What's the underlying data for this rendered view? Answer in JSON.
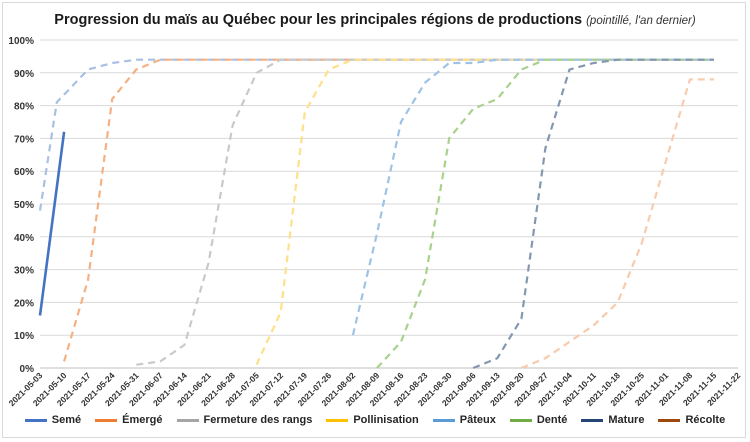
{
  "chart_data": {
    "type": "line",
    "title": "Progression du maïs au Québec pour les principales régions de productions",
    "subtitle": "(pointillé, l'an dernier)",
    "x_categories": [
      "2021-05-03",
      "2021-05-10",
      "2021-05-17",
      "2021-05-24",
      "2021-05-31",
      "2021-06-07",
      "2021-06-14",
      "2021-06-21",
      "2021-06-28",
      "2021-07-05",
      "2021-07-12",
      "2021-07-19",
      "2021-07-26",
      "2021-08-02",
      "2021-08-09",
      "2021-08-16",
      "2021-08-23",
      "2021-08-30",
      "2021-09-06",
      "2021-09-13",
      "2021-09-20",
      "2021-09-27",
      "2021-10-04",
      "2021-10-11",
      "2021-10-18",
      "2021-10-25",
      "2021-11-01",
      "2021-11-08",
      "2021-11-15",
      "2021-11-22"
    ],
    "y_ticks": [
      "0%",
      "10%",
      "20%",
      "30%",
      "40%",
      "50%",
      "60%",
      "70%",
      "80%",
      "90%",
      "100%"
    ],
    "ylim": [
      0,
      100
    ],
    "grid": true,
    "legend_position": "bottom",
    "series": [
      {
        "name": "Semé",
        "color": "#4472c4",
        "style": "solid",
        "points": [
          [
            0,
            16
          ],
          [
            1,
            72
          ]
        ]
      },
      {
        "name": "Émergé",
        "color": "#ed7d31",
        "style": "solid",
        "points": []
      },
      {
        "name": "Fermeture des rangs",
        "color": "#a5a5a5",
        "style": "solid",
        "points": []
      },
      {
        "name": "Pollinisation",
        "color": "#ffc000",
        "style": "solid",
        "points": []
      },
      {
        "name": "Pâteux",
        "color": "#5b9bd5",
        "style": "solid",
        "points": []
      },
      {
        "name": "Denté",
        "color": "#70ad47",
        "style": "solid",
        "points": []
      },
      {
        "name": "Mature",
        "color": "#264478",
        "style": "solid",
        "points": []
      },
      {
        "name": "Récolte",
        "color": "#9e480e",
        "style": "solid",
        "points": []
      },
      {
        "color": "#a9bfe3",
        "style": "dashed",
        "points": [
          [
            0,
            48
          ],
          [
            0.7,
            81
          ],
          [
            2,
            91
          ],
          [
            3,
            93
          ],
          [
            4,
            94
          ],
          [
            28,
            94
          ]
        ]
      },
      {
        "color": "#f4b183",
        "style": "dashed",
        "points": [
          [
            1,
            2
          ],
          [
            2,
            27
          ],
          [
            3,
            82
          ],
          [
            4,
            91
          ],
          [
            5,
            94
          ],
          [
            28,
            94
          ]
        ]
      },
      {
        "color": "#c9c9c9",
        "style": "dashed",
        "points": [
          [
            4,
            1
          ],
          [
            5,
            2
          ],
          [
            6,
            7
          ],
          [
            7,
            32
          ],
          [
            8,
            74
          ],
          [
            9,
            90
          ],
          [
            10,
            94
          ],
          [
            28,
            94
          ]
        ]
      },
      {
        "color": "#ffe08a",
        "style": "dashed",
        "points": [
          [
            9,
            1
          ],
          [
            10,
            17
          ],
          [
            11,
            78
          ],
          [
            12,
            91
          ],
          [
            13,
            94
          ],
          [
            28,
            94
          ]
        ]
      },
      {
        "color": "#9dc3e6",
        "style": "dashed",
        "points": [
          [
            13,
            10
          ],
          [
            14,
            41
          ],
          [
            15,
            75
          ],
          [
            16,
            87
          ],
          [
            17,
            93
          ],
          [
            18,
            93
          ],
          [
            19,
            94
          ],
          [
            28,
            94
          ]
        ]
      },
      {
        "color": "#a9d18e",
        "style": "dashed",
        "points": [
          [
            14,
            0
          ],
          [
            15,
            8
          ],
          [
            16,
            27
          ],
          [
            17,
            70
          ],
          [
            18,
            79
          ],
          [
            19,
            82
          ],
          [
            20,
            91
          ],
          [
            21,
            94
          ],
          [
            28,
            94
          ]
        ]
      },
      {
        "color": "#8497b0",
        "style": "dashed",
        "points": [
          [
            18,
            0
          ],
          [
            19,
            3
          ],
          [
            20,
            15
          ],
          [
            21,
            67
          ],
          [
            22,
            91
          ],
          [
            23,
            93
          ],
          [
            24,
            94
          ],
          [
            28,
            94
          ]
        ]
      },
      {
        "color": "#f8cbad",
        "style": "dashed",
        "points": [
          [
            20,
            0
          ],
          [
            21,
            3
          ],
          [
            22,
            8
          ],
          [
            23,
            13
          ],
          [
            24,
            20
          ],
          [
            25,
            38
          ],
          [
            26,
            63
          ],
          [
            27,
            88
          ],
          [
            28,
            88
          ]
        ]
      }
    ]
  }
}
